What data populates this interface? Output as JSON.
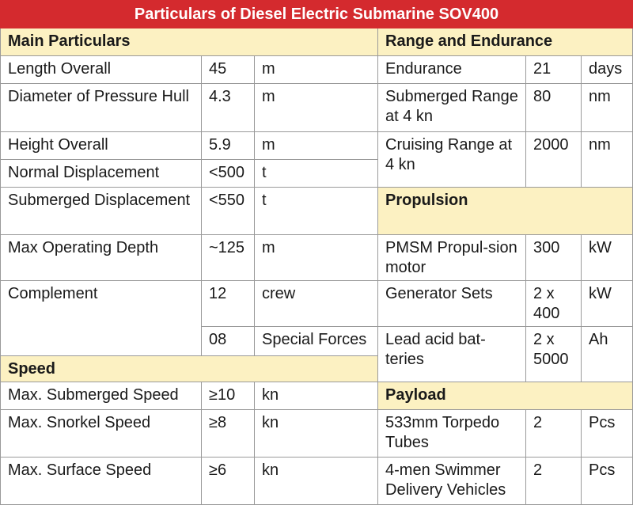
{
  "title": "Particulars of Diesel Electric Submarine SOV400",
  "main": {
    "header": "Main Particulars",
    "rows": [
      [
        "Length Overall",
        "45",
        "m"
      ],
      [
        "Diameter of Pressure Hull",
        "4.3",
        "m"
      ],
      [
        "Height Overall",
        "5.9",
        "m"
      ],
      [
        "Normal Displacement",
        "<500",
        "t"
      ],
      [
        "Submerged Displacement",
        "<550",
        "t"
      ],
      [
        "Max Operating Depth",
        "~125",
        "m"
      ],
      [
        "Complement",
        "12",
        "crew"
      ],
      [
        "08",
        "Special Forces"
      ]
    ]
  },
  "speed": {
    "header": "Speed",
    "rows": [
      [
        "Max. Submerged Speed",
        "≥10",
        "kn"
      ],
      [
        "Max. Snorkel Speed",
        "≥8",
        "kn"
      ],
      [
        "Max. Surface Speed",
        "≥6",
        "kn"
      ]
    ]
  },
  "range": {
    "header": "Range and Endurance",
    "rows": [
      [
        "Endurance",
        "21",
        "days"
      ],
      [
        "Submerged Range at 4 kn",
        "80",
        "nm"
      ],
      [
        "Cruising Range at 4 kn",
        "2000",
        "nm"
      ]
    ]
  },
  "propulsion": {
    "header": "Propulsion",
    "rows": [
      [
        "PMSM Propul-sion motor",
        "300",
        "kW"
      ],
      [
        "Generator Sets",
        "2 x 400",
        "kW"
      ],
      [
        "Lead acid bat-teries",
        "2 x 5000",
        "Ah"
      ]
    ]
  },
  "payload": {
    "header": "Payload",
    "rows": [
      [
        "533mm Torpedo Tubes",
        "2",
        "Pcs"
      ],
      [
        "4-men Swimmer Delivery Vehicles",
        "2",
        "Pcs"
      ]
    ]
  }
}
